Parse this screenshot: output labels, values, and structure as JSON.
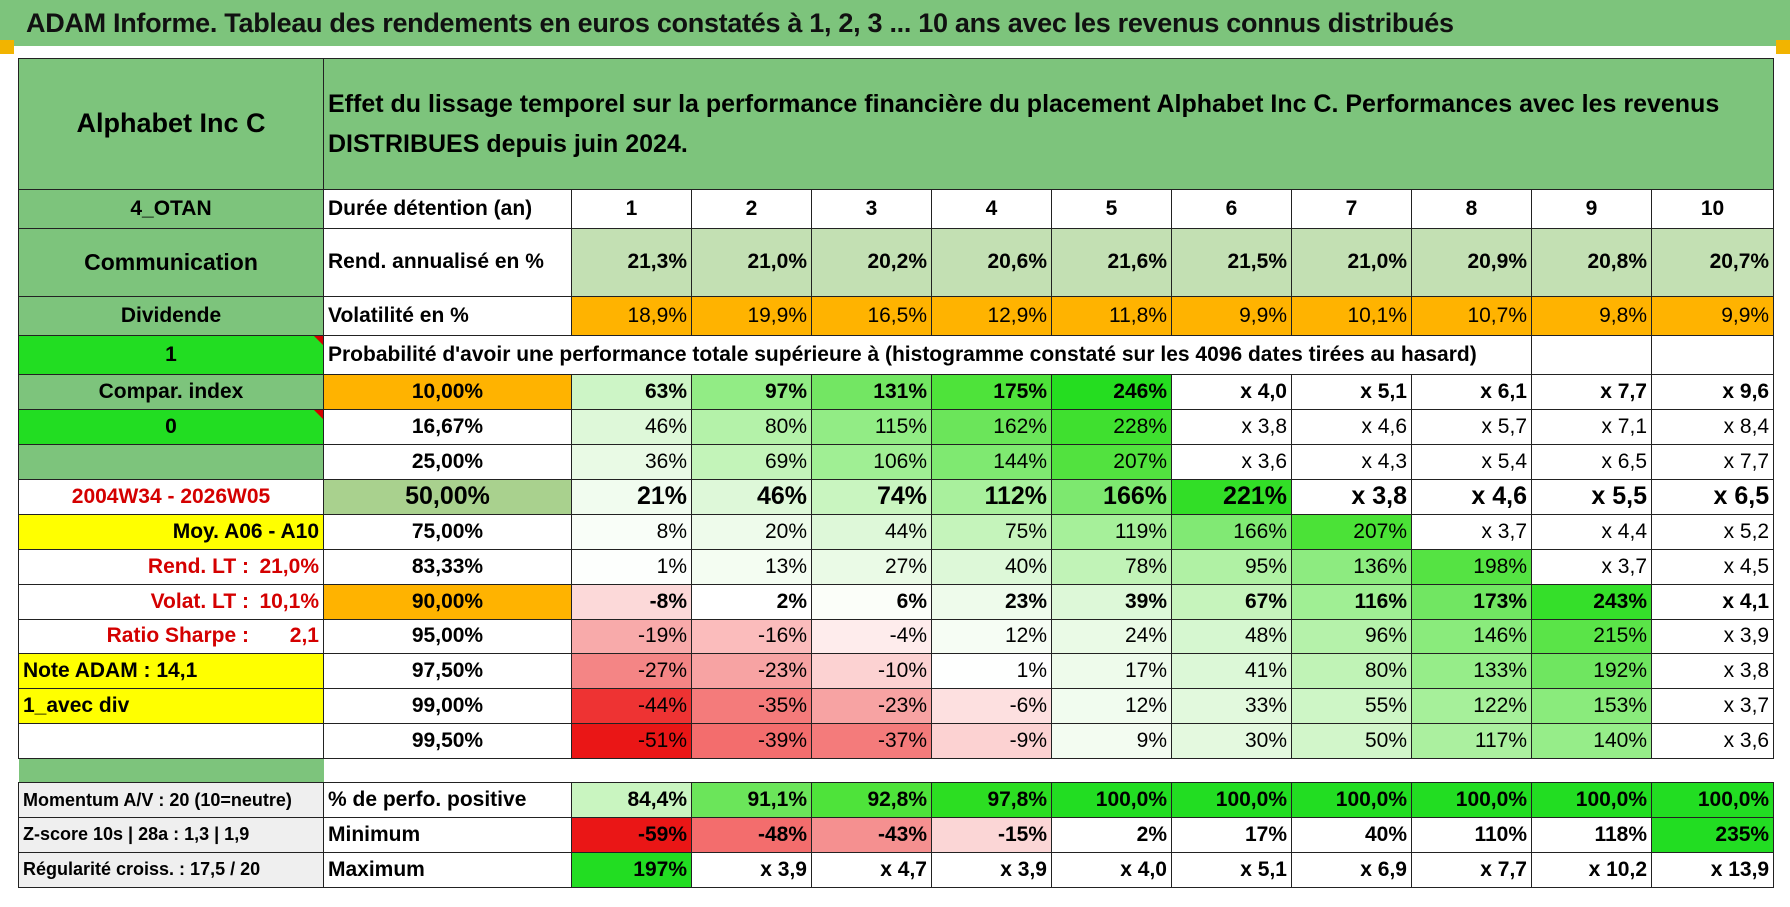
{
  "title": "ADAM Informe. Tableau des rendements en euros constatés à 1, 2, 3 ... 10 ans avec les revenus connus distribués",
  "header": {
    "asset": "Alphabet Inc C",
    "description": "Effet du lissage temporel sur la performance financière du placement Alphabet Inc C. Performances avec les revenus DISTRIBUES depuis juin 2024."
  },
  "labels": {
    "group": "4_OTAN",
    "sector": "Communication",
    "payout": "Dividende",
    "one": "1",
    "compar_index": "Compar. index",
    "zero": "0",
    "period": "2004W34 - 2026W05",
    "moy": "Moy. A06 - A10",
    "rend_lt_label": "Rend. LT :",
    "rend_lt_value": "21,0%",
    "volat_lt_label": "Volat. LT :",
    "volat_lt_value": "10,1%",
    "sharpe_label": "Ratio Sharpe :",
    "sharpe_value": "2,1",
    "note": "Note ADAM : 14,1",
    "div": "1_avec div",
    "momentum": "Momentum A/V : 20 (10=neutre)",
    "zscore": "Z-score 10s | 28a : 1,3 | 1,9",
    "regularite": "Régularité croiss. : 17,5 / 20"
  },
  "durations": {
    "label": "Durée détention (an)",
    "values": [
      "1",
      "2",
      "3",
      "4",
      "5",
      "6",
      "7",
      "8",
      "9",
      "10"
    ]
  },
  "rendement": {
    "label": "Rend. annualisé en %",
    "values": [
      "21,3%",
      "21,0%",
      "20,2%",
      "20,6%",
      "21,6%",
      "21,5%",
      "21,0%",
      "20,9%",
      "20,8%",
      "20,7%"
    ]
  },
  "volatilite": {
    "label": "Volatilité en %",
    "values": [
      "18,9%",
      "19,9%",
      "16,5%",
      "12,9%",
      "11,8%",
      "9,9%",
      "10,1%",
      "10,7%",
      "9,8%",
      "9,9%"
    ]
  },
  "probability_caption": "Probabilité d'avoir une performance totale supérieure à (histogramme constaté sur les 4096 dates tirées au hasard)",
  "prob_rows": [
    {
      "p": "10,00%",
      "values": [
        "63%",
        "97%",
        "131%",
        "175%",
        "246%",
        "x 4,0",
        "x 5,1",
        "x 6,1",
        "x 7,7",
        "x 9,6"
      ]
    },
    {
      "p": "16,67%",
      "values": [
        "46%",
        "80%",
        "115%",
        "162%",
        "228%",
        "x 3,8",
        "x 4,6",
        "x 5,7",
        "x 7,1",
        "x 8,4"
      ]
    },
    {
      "p": "25,00%",
      "values": [
        "36%",
        "69%",
        "106%",
        "144%",
        "207%",
        "x 3,6",
        "x 4,3",
        "x 5,4",
        "x 6,5",
        "x 7,7"
      ]
    },
    {
      "p": "50,00%",
      "values": [
        "21%",
        "46%",
        "74%",
        "112%",
        "166%",
        "221%",
        "x 3,8",
        "x 4,6",
        "x 5,5",
        "x 6,5"
      ]
    },
    {
      "p": "75,00%",
      "values": [
        "8%",
        "20%",
        "44%",
        "75%",
        "119%",
        "166%",
        "207%",
        "x 3,7",
        "x 4,4",
        "x 5,2"
      ]
    },
    {
      "p": "83,33%",
      "values": [
        "1%",
        "13%",
        "27%",
        "40%",
        "78%",
        "95%",
        "136%",
        "198%",
        "x 3,7",
        "x 4,5"
      ]
    },
    {
      "p": "90,00%",
      "values": [
        "-8%",
        "2%",
        "6%",
        "23%",
        "39%",
        "67%",
        "116%",
        "173%",
        "243%",
        "x 4,1"
      ]
    },
    {
      "p": "95,00%",
      "values": [
        "-19%",
        "-16%",
        "-4%",
        "12%",
        "24%",
        "48%",
        "96%",
        "146%",
        "215%",
        "x 3,9"
      ]
    },
    {
      "p": "97,50%",
      "values": [
        "-27%",
        "-23%",
        "-10%",
        "1%",
        "17%",
        "41%",
        "80%",
        "133%",
        "192%",
        "x 3,8"
      ]
    },
    {
      "p": "99,00%",
      "values": [
        "-44%",
        "-35%",
        "-23%",
        "-6%",
        "12%",
        "33%",
        "55%",
        "122%",
        "153%",
        "x 3,7"
      ]
    },
    {
      "p": "99,50%",
      "values": [
        "-51%",
        "-39%",
        "-37%",
        "-9%",
        "9%",
        "30%",
        "50%",
        "117%",
        "140%",
        "x 3,6"
      ]
    }
  ],
  "stats": {
    "positive": {
      "label": "% de perfo. positive",
      "values": [
        "84,4%",
        "91,1%",
        "92,8%",
        "97,8%",
        "100,0%",
        "100,0%",
        "100,0%",
        "100,0%",
        "100,0%",
        "100,0%"
      ]
    },
    "minimum": {
      "label": "Minimum",
      "values": [
        "-59%",
        "-48%",
        "-43%",
        "-15%",
        "2%",
        "17%",
        "40%",
        "110%",
        "118%",
        "235%"
      ]
    },
    "maximum": {
      "label": "Maximum",
      "values": [
        "197%",
        "x 3,9",
        "x 4,7",
        "x 3,9",
        "x 4,0",
        "x 5,1",
        "x 6,9",
        "x 7,7",
        "x 10,2",
        "x 13,9"
      ]
    }
  },
  "colors": {
    "title_bg": "#7dc47c",
    "label_green": "#7dc47c",
    "bright_green": "#22dd22",
    "yellow": "#ffff00",
    "orange": "#ffb300",
    "rend_green": "#c3e0b3",
    "median_green": "#a9d18e",
    "red_text": "#d40000"
  },
  "fills": {
    "rendement": [
      "#c3e0b3",
      "#c3e0b3",
      "#c3e0b3",
      "#c3e0b3",
      "#c3e0b3",
      "#c3e0b3",
      "#c3e0b3",
      "#c3e0b3",
      "#c3e0b3",
      "#c3e0b3"
    ],
    "volatilite": [
      "#ffb300",
      "#ffb300",
      "#ffb300",
      "#ffb300",
      "#ffb300",
      "#ffb300",
      "#ffb300",
      "#ffb300",
      "#ffb300",
      "#ffb300"
    ],
    "prob": [
      [
        "#cdf5c6",
        "#92ec85",
        "#73e663",
        "#4ee33a",
        "#25dd20",
        "#fff",
        "#fff",
        "#fff",
        "#fff",
        "#fff"
      ],
      [
        "#def8d9",
        "#b4f2a9",
        "#92ec85",
        "#6be55a",
        "#3fe02f",
        "#fff",
        "#fff",
        "#fff",
        "#fff",
        "#fff"
      ],
      [
        "#e9faE5",
        "#c3f4b9",
        "#a0ef94",
        "#7fe971",
        "#52e23f",
        "#fff",
        "#fff",
        "#fff",
        "#fff",
        "#fff"
      ],
      [
        "#f1fcef",
        "#def8d9",
        "#c9f5c0",
        "#a9f09d",
        "#7de86f",
        "#32de27",
        "#fff",
        "#fff",
        "#fff",
        "#fff"
      ],
      [
        "#f9fef8",
        "#eefbeb",
        "#def8d9",
        "#c5f4bb",
        "#a6f09a",
        "#81e974",
        "#4be237",
        "#fff",
        "#fff",
        "#fff"
      ],
      [
        "#fdfffd",
        "#f4fdf2",
        "#eafae6",
        "#ddf8d8",
        "#c1f3b7",
        "#b0f1a4",
        "#8deb80",
        "#55e343",
        "#fff",
        "#fff"
      ],
      [
        "#fcd9d9",
        "#fff",
        "#fbfef9",
        "#eefbeb",
        "#ddf8d8",
        "#c6f4bc",
        "#a0ef94",
        "#71e662",
        "#35df2a",
        "#fff"
      ],
      [
        "#f8aaaa",
        "#fbbcbc",
        "#feecec",
        "#f6fdf4",
        "#eafae6",
        "#d6f7d0",
        "#b5f2aa",
        "#8aeb7c",
        "#5ae448",
        "#fff"
      ],
      [
        "#f48585",
        "#f7a3a3",
        "#fcd2d2",
        "#fefffe",
        "#eefbeb",
        "#dcf8d7",
        "#c0f3b6",
        "#96ed89",
        "#6fe660",
        "#fff"
      ],
      [
        "#ee3333",
        "#f47b7b",
        "#f7a3a3",
        "#fde0e0",
        "#f1fcef",
        "#e2f9dd",
        "#cef6c6",
        "#a6f09a",
        "#8aeb7c",
        "#fff"
      ],
      [
        "#ea1616",
        "#f36d6d",
        "#f47b7b",
        "#fcd2d2",
        "#f3fcf1",
        "#e4f9df",
        "#d2f6ca",
        "#abf09f",
        "#96ed89",
        "#fff"
      ]
    ],
    "positive": [
      "#c9f5c0",
      "#6be55a",
      "#4ee33a",
      "#2cde22",
      "#22dd22",
      "#22dd22",
      "#22dd22",
      "#22dd22",
      "#22dd22",
      "#22dd22"
    ],
    "minimum": [
      "#ea1616",
      "#f36d6d",
      "#f59090",
      "#fbd6d6",
      "#fff",
      "#fff",
      "#fff",
      "#fff",
      "#fff",
      "#22dd22"
    ],
    "maximum": [
      "#22dd22",
      "#fff",
      "#fff",
      "#fff",
      "#fff",
      "#fff",
      "#fff",
      "#fff",
      "#fff",
      "#fff"
    ]
  },
  "left_fills": {
    "period": "#ffffff"
  }
}
